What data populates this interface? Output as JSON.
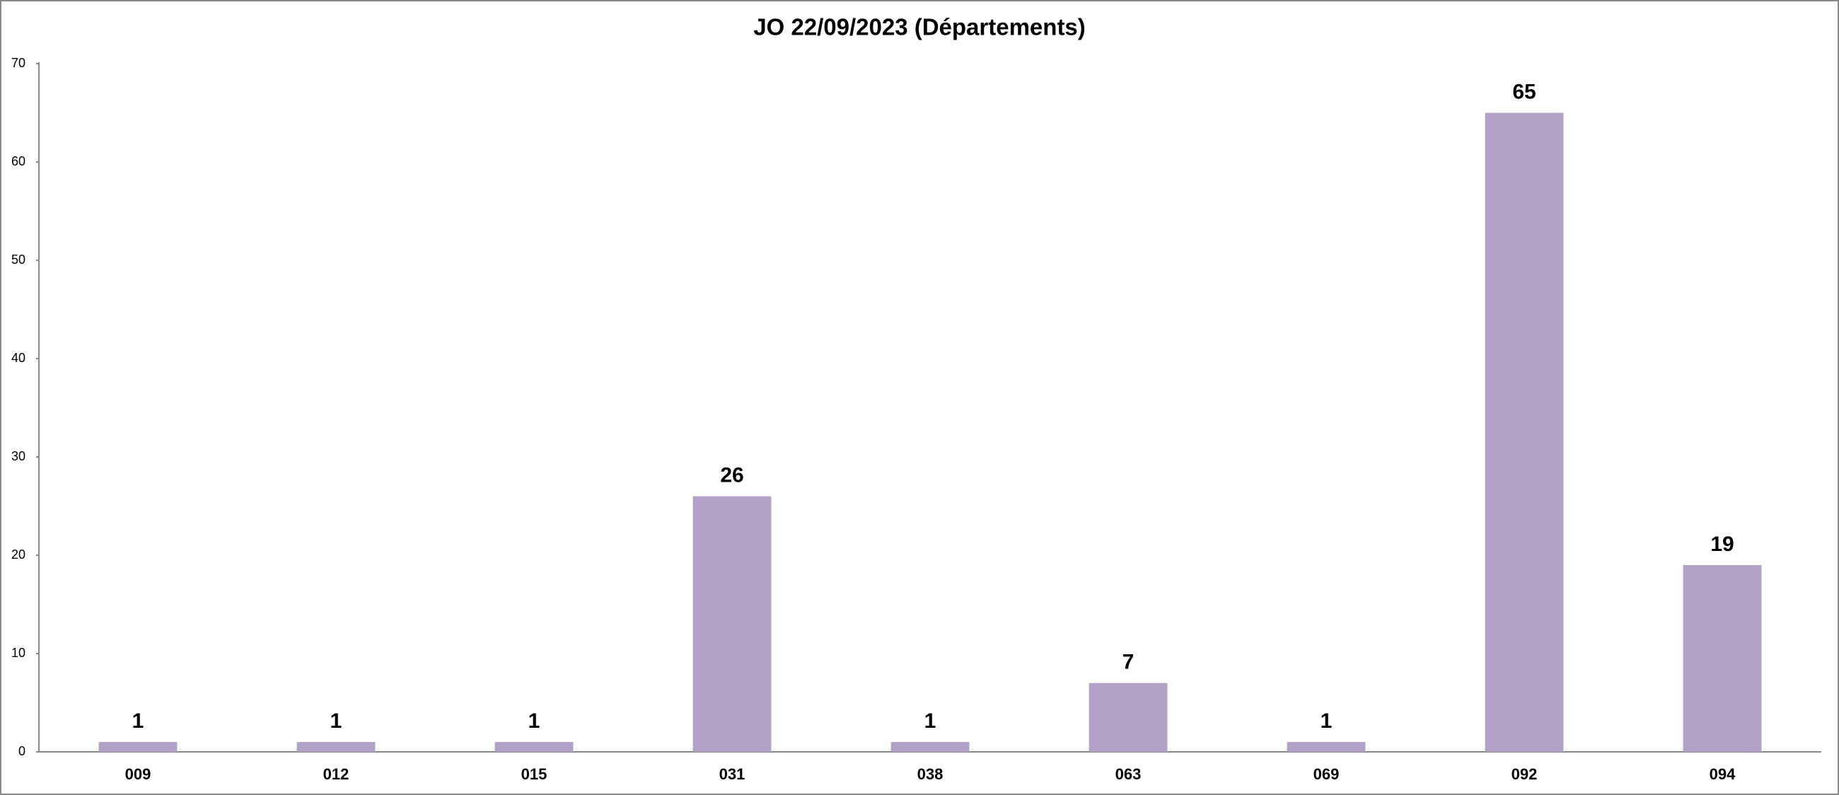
{
  "chart_data": {
    "type": "bar",
    "title": "JO 22/09/2023 (Départements)",
    "categories": [
      "009",
      "012",
      "015",
      "031",
      "038",
      "063",
      "069",
      "092",
      "094"
    ],
    "values": [
      1,
      1,
      1,
      26,
      1,
      7,
      1,
      65,
      19
    ],
    "color": "#b3a2c7",
    "ylim": [
      0,
      70
    ],
    "yticks": [
      0,
      10,
      20,
      30,
      40,
      50,
      60,
      70
    ],
    "grid": false
  }
}
